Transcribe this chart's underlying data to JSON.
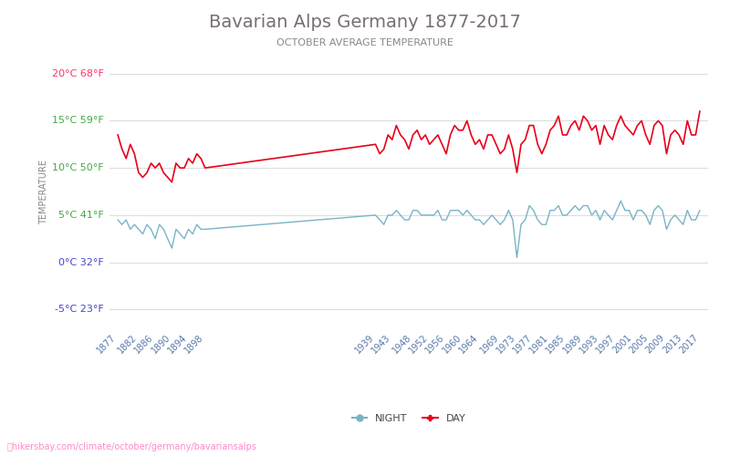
{
  "title": "Bavarian Alps Germany 1877-2017",
  "subtitle": "OCTOBER AVERAGE TEMPERATURE",
  "ylabel": "TEMPERATURE",
  "watermark": "hikersbay.com/climate/october/germany/bavariansalps",
  "yticks_c": [
    -5,
    0,
    5,
    10,
    15,
    20
  ],
  "yticks_f": [
    23,
    32,
    41,
    50,
    59,
    68
  ],
  "ytick_colors": [
    "#4444cc",
    "#4444cc",
    "#44aa44",
    "#44aa44",
    "#44aa44",
    "#ff3366"
  ],
  "ylim": [
    -7,
    22
  ],
  "xlim": [
    1875,
    2019
  ],
  "x_tick_labels": [
    "1877",
    "1882",
    "1886",
    "1890",
    "1894",
    "1898",
    "1939",
    "1943",
    "1948",
    "1952",
    "1956",
    "1960",
    "1964",
    "1969",
    "1973",
    "1977",
    "1981",
    "1985",
    "1989",
    "1993",
    "1997",
    "2001",
    "2005",
    "2009",
    "2013",
    "2017"
  ],
  "day_color": "#e8001c",
  "night_color": "#7ab3c8",
  "background_color": "#ffffff",
  "grid_color": "#dddddd",
  "title_color": "#7a6e6e",
  "subtitle_color": "#888888",
  "legend_night": "NIGHT",
  "legend_day": "DAY",
  "years": [
    1877,
    1878,
    1879,
    1880,
    1881,
    1882,
    1883,
    1884,
    1885,
    1886,
    1887,
    1888,
    1889,
    1890,
    1891,
    1892,
    1893,
    1894,
    1895,
    1896,
    1897,
    1898,
    1939,
    1940,
    1941,
    1942,
    1943,
    1944,
    1945,
    1946,
    1947,
    1948,
    1949,
    1950,
    1951,
    1952,
    1953,
    1954,
    1955,
    1956,
    1957,
    1958,
    1959,
    1960,
    1961,
    1962,
    1963,
    1964,
    1965,
    1966,
    1967,
    1968,
    1969,
    1970,
    1971,
    1972,
    1973,
    1974,
    1975,
    1976,
    1977,
    1978,
    1979,
    1980,
    1981,
    1982,
    1983,
    1984,
    1985,
    1986,
    1987,
    1988,
    1989,
    1990,
    1991,
    1992,
    1993,
    1994,
    1995,
    1996,
    1997,
    1998,
    1999,
    2000,
    2001,
    2002,
    2003,
    2004,
    2005,
    2006,
    2007,
    2008,
    2009,
    2010,
    2011,
    2012,
    2013,
    2014,
    2015,
    2016,
    2017
  ],
  "day_temps": [
    13.5,
    12.0,
    11.0,
    12.5,
    11.5,
    9.5,
    9.0,
    9.5,
    10.5,
    10.0,
    10.5,
    9.5,
    9.0,
    8.5,
    10.5,
    10.0,
    10.0,
    11.0,
    10.5,
    11.5,
    11.0,
    10.0,
    12.5,
    11.5,
    12.0,
    13.5,
    13.0,
    14.5,
    13.5,
    13.0,
    12.0,
    13.5,
    14.0,
    13.0,
    13.5,
    12.5,
    13.0,
    13.5,
    12.5,
    11.5,
    13.5,
    14.5,
    14.0,
    14.0,
    15.0,
    13.5,
    12.5,
    13.0,
    12.0,
    13.5,
    13.5,
    12.5,
    11.5,
    12.0,
    13.5,
    12.0,
    9.5,
    12.5,
    13.0,
    14.5,
    14.5,
    12.5,
    11.5,
    12.5,
    14.0,
    14.5,
    15.5,
    13.5,
    13.5,
    14.5,
    15.0,
    14.0,
    15.5,
    15.0,
    14.0,
    14.5,
    12.5,
    14.5,
    13.5,
    13.0,
    14.5,
    15.5,
    14.5,
    14.0,
    13.5,
    14.5,
    15.0,
    13.5,
    12.5,
    14.5,
    15.0,
    14.5,
    11.5,
    13.5,
    14.0,
    13.5,
    12.5,
    15.0,
    13.5,
    13.5,
    16.0
  ],
  "night_temps": [
    4.5,
    4.0,
    4.5,
    3.5,
    4.0,
    3.5,
    3.0,
    4.0,
    3.5,
    2.5,
    4.0,
    3.5,
    2.5,
    1.5,
    3.5,
    3.0,
    2.5,
    3.5,
    3.0,
    4.0,
    3.5,
    3.5,
    5.0,
    4.5,
    4.0,
    5.0,
    5.0,
    5.5,
    5.0,
    4.5,
    4.5,
    5.5,
    5.5,
    5.0,
    5.0,
    5.0,
    5.0,
    5.5,
    4.5,
    4.5,
    5.5,
    5.5,
    5.5,
    5.0,
    5.5,
    5.0,
    4.5,
    4.5,
    4.0,
    4.5,
    5.0,
    4.5,
    4.0,
    4.5,
    5.5,
    4.5,
    0.5,
    4.0,
    4.5,
    6.0,
    5.5,
    4.5,
    4.0,
    4.0,
    5.5,
    5.5,
    6.0,
    5.0,
    5.0,
    5.5,
    6.0,
    5.5,
    6.0,
    6.0,
    5.0,
    5.5,
    4.5,
    5.5,
    5.0,
    4.5,
    5.5,
    6.5,
    5.5,
    5.5,
    4.5,
    5.5,
    5.5,
    5.0,
    4.0,
    5.5,
    6.0,
    5.5,
    3.5,
    4.5,
    5.0,
    4.5,
    4.0,
    5.5,
    4.5,
    4.5,
    5.5
  ]
}
